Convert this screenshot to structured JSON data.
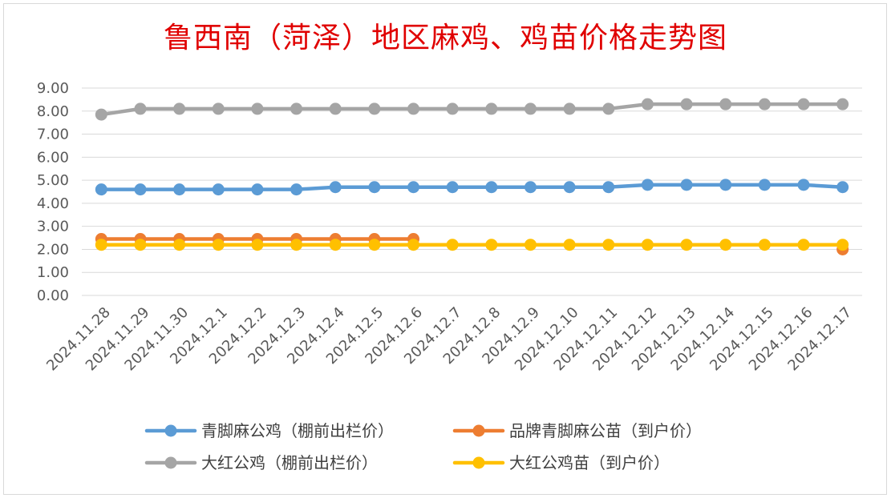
{
  "chart_data": {
    "type": "line",
    "title": "鲁西南（菏泽）地区麻鸡、鸡苗价格走势图",
    "xlabel": "",
    "ylabel": "",
    "ylim": [
      0,
      9
    ],
    "yticks": [
      "0.00",
      "1.00",
      "2.00",
      "3.00",
      "4.00",
      "5.00",
      "6.00",
      "7.00",
      "8.00",
      "9.00"
    ],
    "grid": true,
    "legend_position": "bottom",
    "categories": [
      "2024.11.28",
      "2024.11.29",
      "2024.11.30",
      "2024.12.1",
      "2024.12.2",
      "2024.12.3",
      "2024.12.4",
      "2024.12.5",
      "2024.12.6",
      "2024.12.7",
      "2024.12.8",
      "2024.12.9",
      "2024.12.10",
      "2024.12.11",
      "2024.12.12",
      "2024.12.13",
      "2024.12.14",
      "2024.12.15",
      "2024.12.16",
      "2024.12.17"
    ],
    "series": [
      {
        "name": "青脚麻公鸡（棚前出栏价）",
        "color": "#5b9bd5",
        "values": [
          4.6,
          4.6,
          4.6,
          4.6,
          4.6,
          4.6,
          4.7,
          4.7,
          4.7,
          4.7,
          4.7,
          4.7,
          4.7,
          4.7,
          4.8,
          4.8,
          4.8,
          4.8,
          4.8,
          4.7
        ]
      },
      {
        "name": "品牌青脚麻公苗（到户价）",
        "color": "#ed7d31",
        "values": [
          2.45,
          2.45,
          2.45,
          2.45,
          2.45,
          2.45,
          2.45,
          2.45,
          2.45,
          null,
          null,
          null,
          null,
          null,
          null,
          null,
          null,
          null,
          null,
          2.0
        ]
      },
      {
        "name": "大红公鸡（棚前出栏价）",
        "color": "#a5a5a5",
        "values": [
          7.85,
          8.1,
          8.1,
          8.1,
          8.1,
          8.1,
          8.1,
          8.1,
          8.1,
          8.1,
          8.1,
          8.1,
          8.1,
          8.1,
          8.3,
          8.3,
          8.3,
          8.3,
          8.3,
          8.3
        ]
      },
      {
        "name": "大红公鸡苗（到户价）",
        "color": "#ffc000",
        "values": [
          2.2,
          2.2,
          2.2,
          2.2,
          2.2,
          2.2,
          2.2,
          2.2,
          2.2,
          2.2,
          2.2,
          2.2,
          2.2,
          2.2,
          2.2,
          2.2,
          2.2,
          2.2,
          2.2,
          2.2
        ]
      }
    ]
  }
}
